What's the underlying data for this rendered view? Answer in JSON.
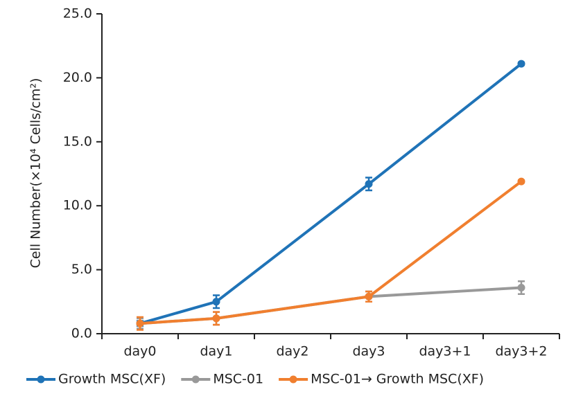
{
  "chart_data": {
    "type": "line",
    "y_label": "Cell Number(×10⁴ Cells/cm²)",
    "categories": [
      "day0",
      "day1",
      "day2",
      "day3",
      "day3+1",
      "day3+2"
    ],
    "series": [
      {
        "name": "Growth MSC(XF)",
        "color": "#1f73b7",
        "values": [
          0.8,
          2.5,
          7.1,
          11.7,
          16.4,
          21.1
        ],
        "errors": [
          0.2,
          0.5,
          null,
          0.5,
          null,
          0.1
        ]
      },
      {
        "name": "MSC-01",
        "color": "#999999",
        "values": [
          0.8,
          1.2,
          2.05,
          2.9,
          3.25,
          3.6
        ],
        "errors": [
          0.4,
          0.5,
          null,
          0.4,
          null,
          0.5
        ]
      },
      {
        "name": "MSC-01→ Growth MSC(XF)",
        "color": "#f07f2f",
        "values": [
          0.8,
          1.2,
          2.05,
          2.9,
          7.4,
          11.9
        ],
        "errors": [
          0.5,
          0.5,
          null,
          0.4,
          null,
          0.1
        ]
      }
    ],
    "ylim": [
      0,
      25
    ],
    "yticks": [
      {
        "value": 0,
        "label": "0.0"
      },
      {
        "value": 5,
        "label": "5.0"
      },
      {
        "value": 10,
        "label": "10.0"
      },
      {
        "value": 15,
        "label": "15.0"
      },
      {
        "value": 20,
        "label": "20.0"
      },
      {
        "value": 25,
        "label": "25.0"
      }
    ],
    "legend": "bottom"
  }
}
